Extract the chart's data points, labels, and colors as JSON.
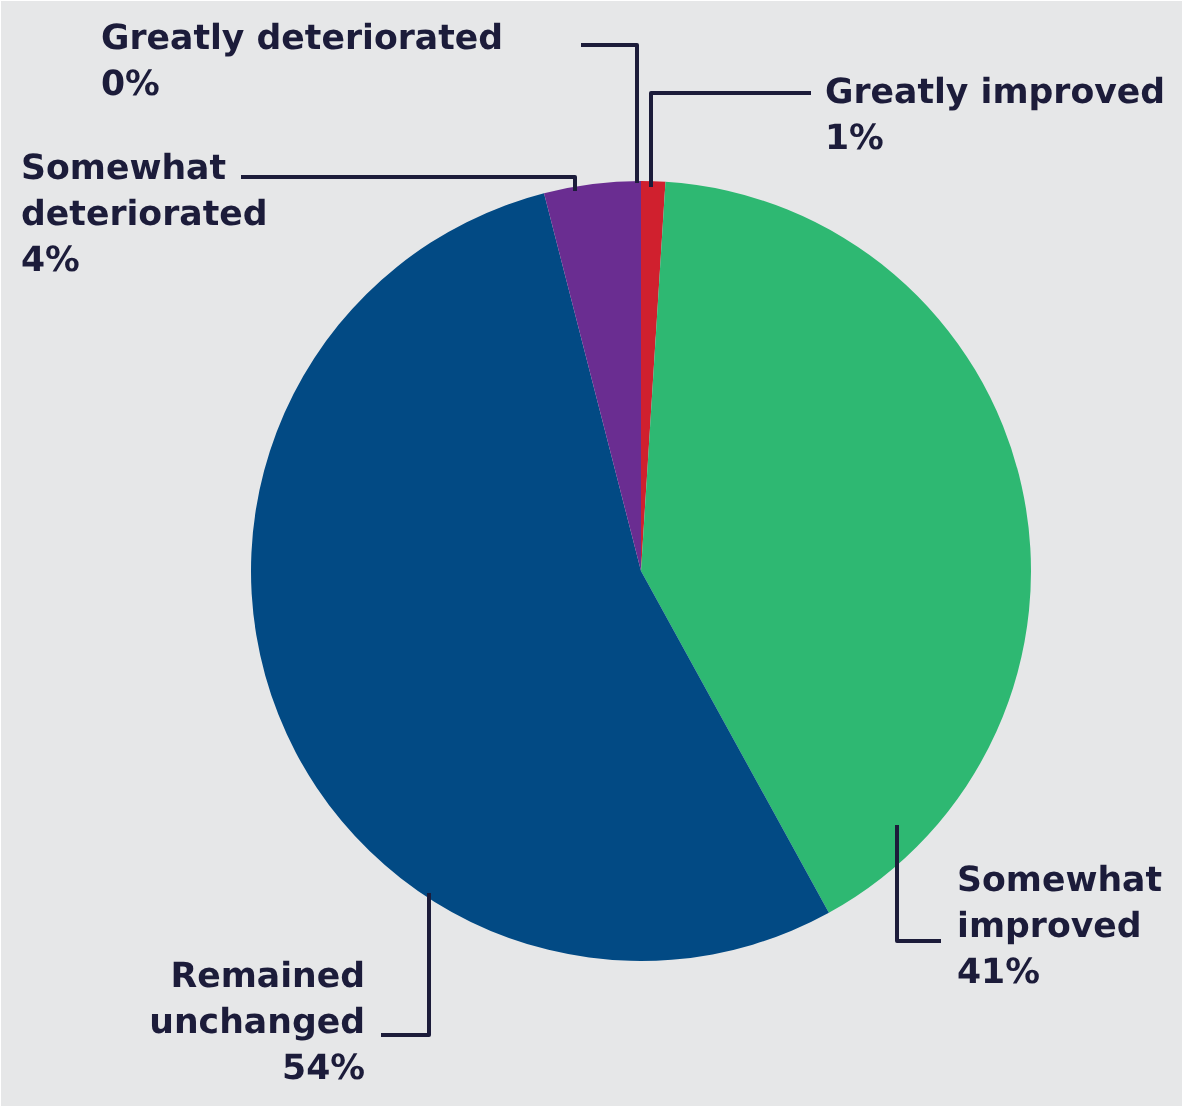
{
  "chart_data": {
    "type": "pie",
    "categories": [
      "Greatly improved",
      "Somewhat improved",
      "Remained unchanged",
      "Somewhat deteriorated",
      "Greatly deteriorated"
    ],
    "values": [
      1,
      41,
      54,
      4,
      0
    ],
    "colors": [
      "#d0202e",
      "#2eb872",
      "#024a84",
      "#6a2d91",
      "#e8731e"
    ],
    "value_labels": [
      "1%",
      "41%",
      "54%",
      "4%",
      "0%"
    ]
  }
}
